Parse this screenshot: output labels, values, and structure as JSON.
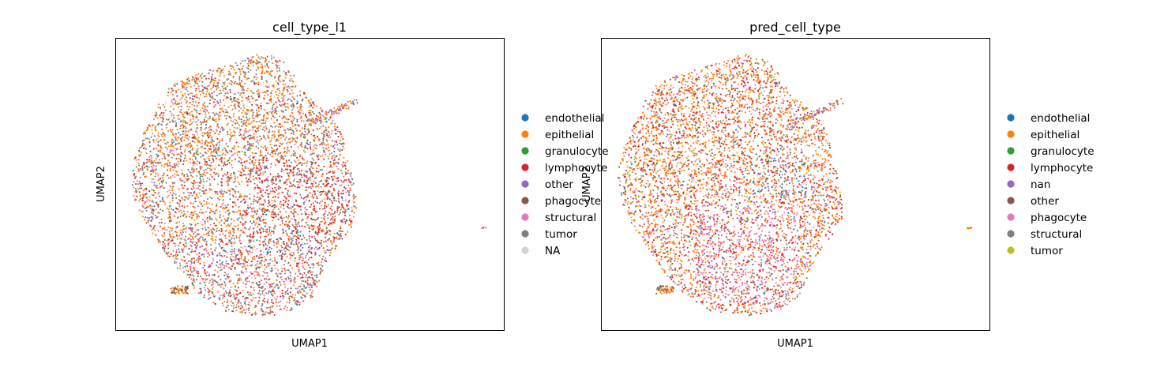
{
  "chart_data": [
    {
      "type": "scatter",
      "title": "cell_type_l1",
      "xlabel": "UMAP1",
      "ylabel": "UMAP2",
      "ticks": "none",
      "grid": false,
      "legend_placement": "right-outside",
      "legend": [
        {
          "name": "endothelial",
          "color": "#1f77b4"
        },
        {
          "name": "epithelial",
          "color": "#ff7f0e"
        },
        {
          "name": "granulocyte",
          "color": "#2ca02c"
        },
        {
          "name": "lymphocyte",
          "color": "#d62728"
        },
        {
          "name": "other",
          "color": "#9467bd"
        },
        {
          "name": "phagocyte",
          "color": "#8c564b"
        },
        {
          "name": "structural",
          "color": "#e377c2"
        },
        {
          "name": "tumor",
          "color": "#7f7f7f"
        },
        {
          "name": "NA",
          "color": "#d3d3d3"
        }
      ]
    },
    {
      "type": "scatter",
      "title": "pred_cell_type",
      "xlabel": "UMAP1",
      "ylabel": "UMAP2",
      "ticks": "none",
      "grid": false,
      "legend_placement": "right-outside",
      "legend": [
        {
          "name": "endothelial",
          "color": "#1f77b4"
        },
        {
          "name": "epithelial",
          "color": "#ff7f0e"
        },
        {
          "name": "granulocyte",
          "color": "#2ca02c"
        },
        {
          "name": "lymphocyte",
          "color": "#d62728"
        },
        {
          "name": "nan",
          "color": "#9467bd"
        },
        {
          "name": "other",
          "color": "#8c564b"
        },
        {
          "name": "phagocyte",
          "color": "#e377c2"
        },
        {
          "name": "structural",
          "color": "#7f7f7f"
        },
        {
          "name": "tumor",
          "color": "#bcbd22"
        }
      ]
    }
  ]
}
